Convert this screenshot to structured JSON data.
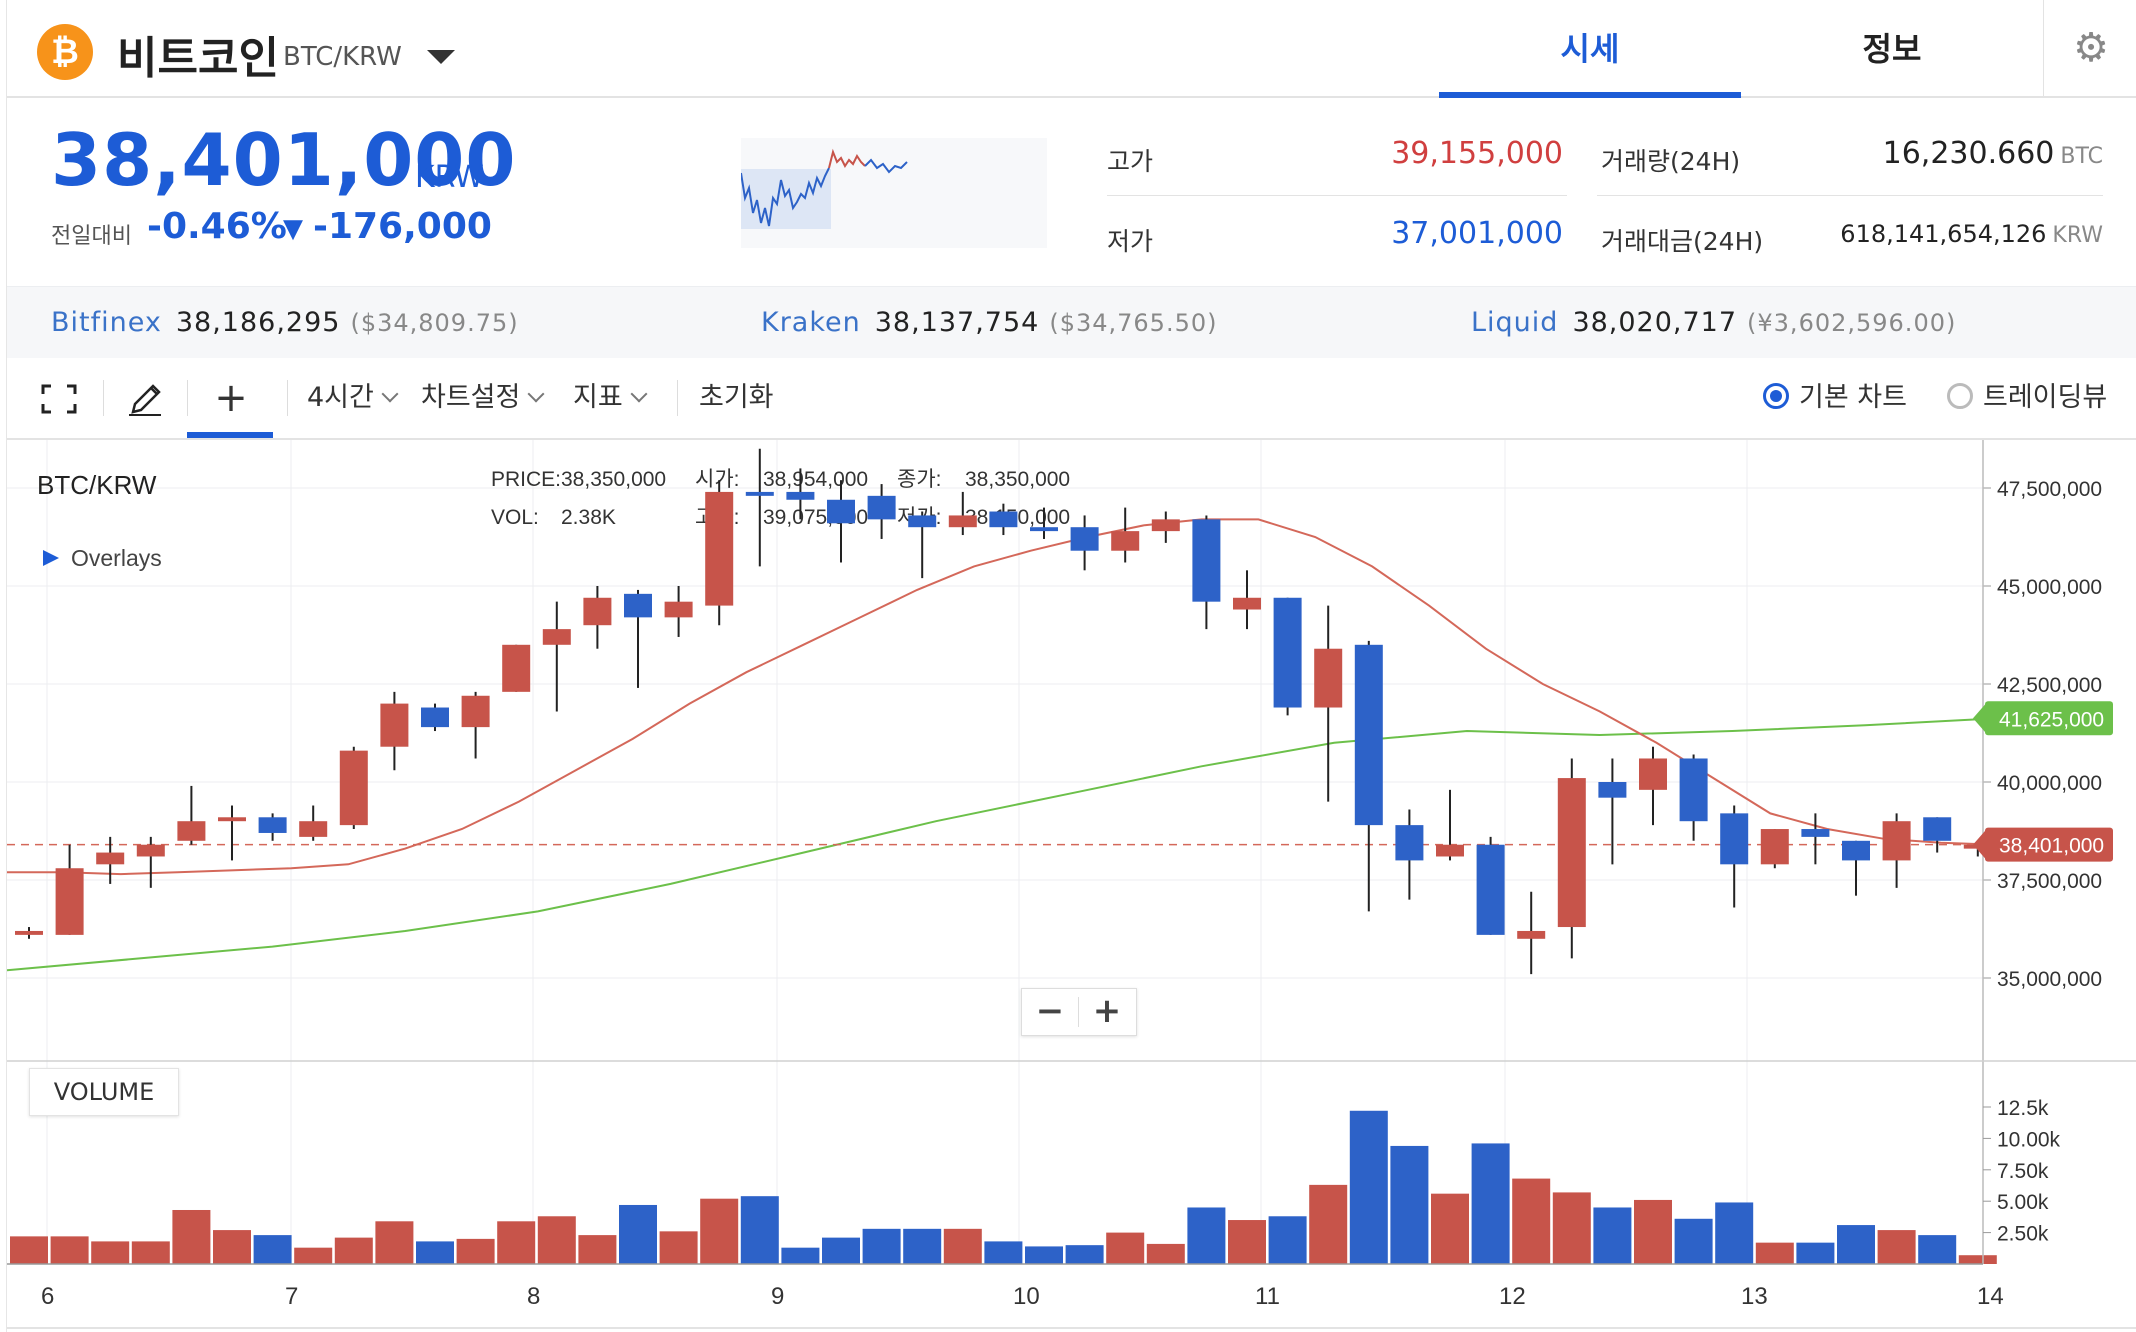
{
  "header": {
    "coin_icon_glyph": "₿",
    "coin_name": "비트코인",
    "pair": "BTC/KRW",
    "tabs": [
      {
        "label": "시세",
        "active": true
      },
      {
        "label": "정보",
        "active": false
      }
    ],
    "settings_icon": "gear-icon"
  },
  "summary": {
    "price": "38,401,000",
    "unit": "KRW",
    "change_label": "전일대비",
    "change_pct": "-0.46%",
    "change_arrow": "▼",
    "change_amount": "-176,000",
    "high_label": "고가",
    "high_value": "39,155,000",
    "low_label": "저가",
    "low_value": "37,001,000",
    "volume_label": "거래량(24H)",
    "volume_value": "16,230.660",
    "volume_unit": "BTC",
    "turnover_label": "거래대금(24H)",
    "turnover_value": "618,141,654,126",
    "turnover_unit": "KRW"
  },
  "exchanges": [
    {
      "name": "Bitfinex",
      "price": "38,186,295",
      "usd": "($34,809.75)"
    },
    {
      "name": "Kraken",
      "price": "38,137,754",
      "usd": "($34,765.50)"
    },
    {
      "name": "Liquid",
      "price": "38,020,717",
      "usd": "(¥3,602,596.00)"
    }
  ],
  "toolbar": {
    "interval": "4시간",
    "chart_settings": "차트설정",
    "indicators": "지표",
    "reset": "초기화",
    "basic_chart": "기본 차트",
    "tradingview": "트레이딩뷰"
  },
  "legend": {
    "symbol": "BTC/KRW",
    "overlays": "Overlays",
    "price_label": "PRICE:",
    "price_value": "38,350,000",
    "vol_label": "VOL:",
    "vol_value": "2.38K",
    "open_label": "시가:",
    "open_value": "38,954,000",
    "high_label": "고가:",
    "high_value": "39,075,000",
    "close_label": "종가:",
    "close_value": "38,350,000",
    "low_label": "저가:",
    "low_value": "38,150,000"
  },
  "zoom": {
    "minus": "−",
    "plus": "+"
  },
  "volume_label": "VOLUME",
  "colors": {
    "up": "#c7544a",
    "down": "#2d62c8",
    "ma_short": "#d4685a",
    "ma_long": "#6cc04a",
    "accent": "#1d5cd6"
  },
  "chart_data": {
    "type": "candlestick",
    "y_ticks": [
      "47,500,000",
      "45,000,000",
      "42,500,000",
      "40,000,000",
      "37,500,000",
      "35,000,000"
    ],
    "y_tick_values": [
      47500000,
      45000000,
      42500000,
      40000000,
      37500000,
      35000000
    ],
    "x_ticks": [
      "6",
      "7",
      "8",
      "9",
      "10",
      "11",
      "12",
      "13",
      "14"
    ],
    "last_price_label": "38,401,000",
    "last_price": 38401000,
    "ma_long_label": "41,625,000",
    "ma_long_last": 41625000,
    "volume_ticks": [
      "12.5k",
      "10.00k",
      "7.50k",
      "5.00k",
      "2.50k"
    ],
    "volume_tick_values": [
      12500,
      10000,
      7500,
      5000,
      2500
    ],
    "candles": [
      {
        "o": 36100000,
        "h": 36300000,
        "l": 36000000,
        "c": 36200000,
        "v": 2200
      },
      {
        "o": 36100000,
        "h": 38400000,
        "l": 36100000,
        "c": 37800000,
        "v": 2200
      },
      {
        "o": 37900000,
        "h": 38600000,
        "l": 37400000,
        "c": 38200000,
        "v": 1800
      },
      {
        "o": 38100000,
        "h": 38600000,
        "l": 37300000,
        "c": 38400000,
        "v": 1800
      },
      {
        "o": 38500000,
        "h": 39900000,
        "l": 38400000,
        "c": 39000000,
        "v": 4300
      },
      {
        "o": 39000000,
        "h": 39400000,
        "l": 38000000,
        "c": 39100000,
        "v": 2700
      },
      {
        "o": 39100000,
        "h": 39200000,
        "l": 38500000,
        "c": 38700000,
        "v": 2300
      },
      {
        "o": 38600000,
        "h": 39400000,
        "l": 38500000,
        "c": 39000000,
        "v": 1300
      },
      {
        "o": 38900000,
        "h": 40900000,
        "l": 38800000,
        "c": 40800000,
        "v": 2100
      },
      {
        "o": 40900000,
        "h": 42300000,
        "l": 40300000,
        "c": 42000000,
        "v": 3400
      },
      {
        "o": 41900000,
        "h": 42000000,
        "l": 41300000,
        "c": 41400000,
        "v": 1800
      },
      {
        "o": 41400000,
        "h": 42300000,
        "l": 40600000,
        "c": 42200000,
        "v": 2000
      },
      {
        "o": 42300000,
        "h": 43500000,
        "l": 42300000,
        "c": 43500000,
        "v": 3400
      },
      {
        "o": 43500000,
        "h": 44600000,
        "l": 41800000,
        "c": 43900000,
        "v": 3800
      },
      {
        "o": 44000000,
        "h": 45000000,
        "l": 43400000,
        "c": 44700000,
        "v": 2300
      },
      {
        "o": 44800000,
        "h": 44900000,
        "l": 42400000,
        "c": 44200000,
        "v": 4700
      },
      {
        "o": 44200000,
        "h": 45000000,
        "l": 43700000,
        "c": 44600000,
        "v": 2600
      },
      {
        "o": 44500000,
        "h": 47700000,
        "l": 44000000,
        "c": 47400000,
        "v": 5200
      },
      {
        "o": 47400000,
        "h": 48500000,
        "l": 45500000,
        "c": 47300000,
        "v": 5400
      },
      {
        "o": 47400000,
        "h": 48000000,
        "l": 46700000,
        "c": 47200000,
        "v": 1300
      },
      {
        "o": 47200000,
        "h": 47700000,
        "l": 45600000,
        "c": 46600000,
        "v": 2100
      },
      {
        "o": 47300000,
        "h": 47600000,
        "l": 46200000,
        "c": 46700000,
        "v": 2800
      },
      {
        "o": 46800000,
        "h": 46900000,
        "l": 45200000,
        "c": 46500000,
        "v": 2800
      },
      {
        "o": 46500000,
        "h": 47400000,
        "l": 46300000,
        "c": 46800000,
        "v": 2800
      },
      {
        "o": 46900000,
        "h": 47100000,
        "l": 46300000,
        "c": 46500000,
        "v": 1800
      },
      {
        "o": 46500000,
        "h": 47000000,
        "l": 46200000,
        "c": 46400000,
        "v": 1400
      },
      {
        "o": 46500000,
        "h": 46800000,
        "l": 45400000,
        "c": 45900000,
        "v": 1500
      },
      {
        "o": 45900000,
        "h": 47000000,
        "l": 45600000,
        "c": 46400000,
        "v": 2500
      },
      {
        "o": 46400000,
        "h": 46900000,
        "l": 46100000,
        "c": 46700000,
        "v": 1600
      },
      {
        "o": 46700000,
        "h": 46800000,
        "l": 43900000,
        "c": 44600000,
        "v": 4500
      },
      {
        "o": 44400000,
        "h": 45400000,
        "l": 43900000,
        "c": 44700000,
        "v": 3500
      },
      {
        "o": 44700000,
        "h": 44700000,
        "l": 41700000,
        "c": 41900000,
        "v": 3800
      },
      {
        "o": 41900000,
        "h": 44500000,
        "l": 39500000,
        "c": 43400000,
        "v": 6300
      },
      {
        "o": 43500000,
        "h": 43600000,
        "l": 36700000,
        "c": 38900000,
        "v": 12200
      },
      {
        "o": 38900000,
        "h": 39300000,
        "l": 37000000,
        "c": 38000000,
        "v": 9400
      },
      {
        "o": 38100000,
        "h": 39800000,
        "l": 38000000,
        "c": 38400000,
        "v": 5600
      },
      {
        "o": 38400000,
        "h": 38600000,
        "l": 36100000,
        "c": 36100000,
        "v": 9600
      },
      {
        "o": 36000000,
        "h": 37200000,
        "l": 35100000,
        "c": 36200000,
        "v": 6800
      },
      {
        "o": 36300000,
        "h": 40600000,
        "l": 35500000,
        "c": 40100000,
        "v": 5700
      },
      {
        "o": 40000000,
        "h": 40600000,
        "l": 37900000,
        "c": 39600000,
        "v": 4500
      },
      {
        "o": 39800000,
        "h": 40900000,
        "l": 38900000,
        "c": 40600000,
        "v": 5100
      },
      {
        "o": 40600000,
        "h": 40700000,
        "l": 38500000,
        "c": 39000000,
        "v": 3600
      },
      {
        "o": 39200000,
        "h": 39400000,
        "l": 36800000,
        "c": 37900000,
        "v": 4900
      },
      {
        "o": 37900000,
        "h": 38800000,
        "l": 37800000,
        "c": 38800000,
        "v": 1700
      },
      {
        "o": 38800000,
        "h": 39200000,
        "l": 37900000,
        "c": 38600000,
        "v": 1700
      },
      {
        "o": 38500000,
        "h": 38500000,
        "l": 37100000,
        "c": 38000000,
        "v": 3100
      },
      {
        "o": 38000000,
        "h": 39200000,
        "l": 37300000,
        "c": 39000000,
        "v": 2700
      },
      {
        "o": 39100000,
        "h": 39100000,
        "l": 38200000,
        "c": 38500000,
        "v": 2300
      },
      {
        "o": 38300000,
        "h": 38500000,
        "l": 38100000,
        "c": 38400000,
        "v": 700
      }
    ],
    "ma_short": [
      37700000,
      37700000,
      37650000,
      37700000,
      37750000,
      37800000,
      37900000,
      38300000,
      38800000,
      39500000,
      40300000,
      41100000,
      42000000,
      42800000,
      43500000,
      44200000,
      44900000,
      45500000,
      45900000,
      46250000,
      46550000,
      46700000,
      46700000,
      46250000,
      45500000,
      44500000,
      43400000,
      42500000,
      41800000,
      41000000,
      40100000,
      39200000,
      38800000,
      38550000,
      38450000,
      38400000
    ],
    "ma_long": [
      35200000,
      35500000,
      35800000,
      36200000,
      36700000,
      37400000,
      38200000,
      39000000,
      39700000,
      40400000,
      41000000,
      41300000,
      41200000,
      41300000,
      41450000,
      41625000
    ]
  }
}
